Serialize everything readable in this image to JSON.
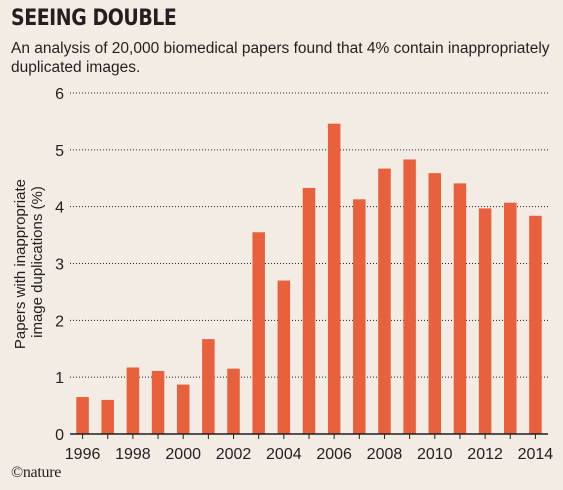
{
  "header": {
    "title": "SEEING DOUBLE",
    "subtitle": "An analysis of 20,000 biomedical papers found that 4% contain inappropriately duplicated images."
  },
  "footer": {
    "credit": "©nature"
  },
  "colors": {
    "bar": "#e8613c",
    "background": "#f2ece4",
    "grid": "#231f20"
  },
  "chart_data": {
    "type": "bar",
    "title": "SEEING DOUBLE",
    "subtitle": "An analysis of 20,000 biomedical papers found that 4% contain inappropriately duplicated images.",
    "ylabel_lines": [
      "Papers with inappropriate",
      "image duplications (%)"
    ],
    "xlabel": "",
    "ylim": [
      0,
      6
    ],
    "yticks": [
      0,
      1,
      2,
      3,
      4,
      5,
      6
    ],
    "grid": "horizontal-dotted",
    "categories": [
      "1996",
      "1997",
      "1998",
      "1999",
      "2000",
      "2001",
      "2002",
      "2003",
      "2004",
      "2005",
      "2006",
      "2007",
      "2008",
      "2009",
      "2010",
      "2011",
      "2012",
      "2013",
      "2014"
    ],
    "xtick_labels": [
      "1996",
      "1998",
      "2000",
      "2002",
      "2004",
      "2006",
      "2008",
      "2010",
      "2012",
      "2014"
    ],
    "values": [
      0.65,
      0.6,
      1.17,
      1.11,
      0.87,
      1.67,
      1.15,
      3.55,
      2.7,
      4.33,
      5.46,
      4.13,
      4.67,
      4.83,
      4.59,
      4.41,
      3.97,
      4.07,
      3.84
    ]
  }
}
